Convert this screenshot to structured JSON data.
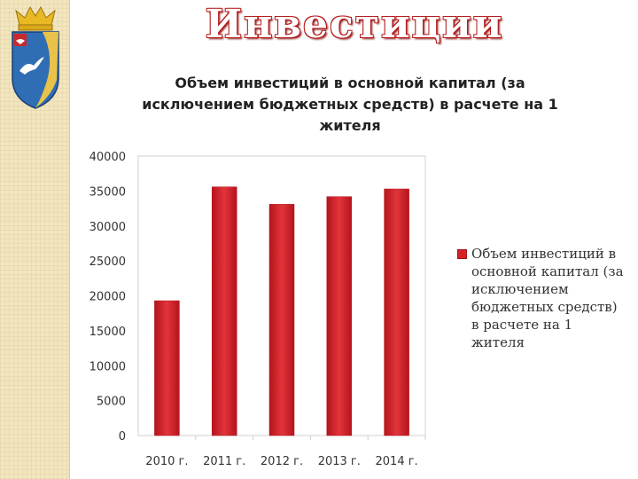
{
  "slide": {
    "title": "Инвестиции"
  },
  "colors": {
    "bar": "#d62028",
    "bar_dark": "#b5141c",
    "sidebar": "#f2e6bf",
    "title_outline": "#b41a1a"
  },
  "emblem": {
    "icon": "city-coat-of-arms-icon"
  },
  "chart_data": {
    "type": "bar",
    "title": "Объем инвестиций в основной капитал (за исключением бюджетных средств) в расчете на 1 жителя",
    "categories": [
      "2010 г.",
      "2011 г.",
      "2012 г.",
      "2013 г.",
      "2014 г."
    ],
    "series": [
      {
        "name": "Объем инвестиций в основной капитал (за исключением бюджетных средств) в расчете на 1 жителя",
        "values": [
          19300,
          35600,
          33100,
          34200,
          35300
        ]
      }
    ],
    "ylim": [
      0,
      40000
    ],
    "yticks": [
      "0",
      "5000",
      "10000",
      "15000",
      "20000",
      "25000",
      "30000",
      "35000",
      "40000"
    ],
    "grid": false,
    "legend_position": "right"
  }
}
